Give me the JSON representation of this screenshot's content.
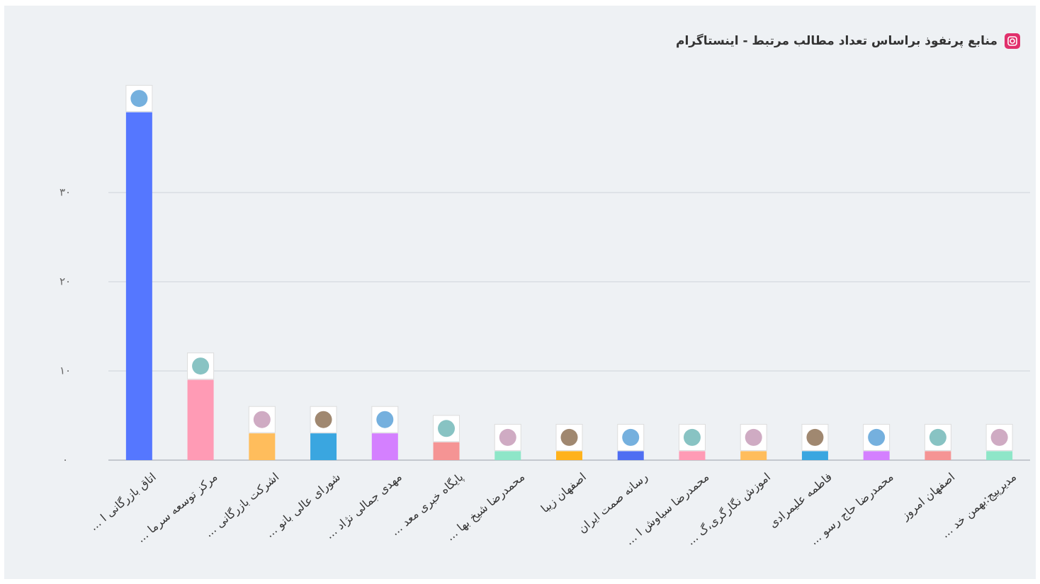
{
  "chart_data": {
    "type": "bar",
    "title": "منابع پرنفوذ براساس تعداد مطالب مرتبط - اینستاگرام",
    "categories": [
      "اتاق بازرگانی ا ...",
      "مرکز توسعه سرما ...",
      "اشرکت بازرگانی ...",
      "شورای عالی بانو ...",
      "مهدی جمالی نژاد ...",
      "پایگاه خبری معد ...",
      "محمدرضا شیخ بها ...",
      "اصفهان زیبا",
      "رسانه صمت ایران",
      "محمدرضا سیاوش ا ...",
      "اموزش نگارگری،گ ...",
      "فاطمه علیمرادی",
      "محمدرضا حاج رسو ...",
      "اصفهان امروز",
      "مدیرپیج:بهمن خد ..."
    ],
    "values": [
      39,
      9,
      3,
      3,
      3,
      2,
      1,
      1,
      1,
      1,
      1,
      1,
      1,
      1,
      1
    ],
    "colors": [
      "#5577ff",
      "#ff9bb5",
      "#ffbd5c",
      "#3aa6e0",
      "#d480ff",
      "#f59494",
      "#8ee6c8",
      "#ffb21c",
      "#4f6ef2",
      "#ff9bb5",
      "#ffbd5c",
      "#3aa6e0",
      "#d480ff",
      "#f59494",
      "#8ee6c8"
    ],
    "ylim": [
      0,
      40
    ],
    "yticks": [
      {
        "value": 0,
        "label": "۰"
      },
      {
        "value": 10,
        "label": "۱۰"
      },
      {
        "value": 20,
        "label": "۲۰"
      },
      {
        "value": 30,
        "label": "۳۰"
      }
    ],
    "grid": true
  }
}
